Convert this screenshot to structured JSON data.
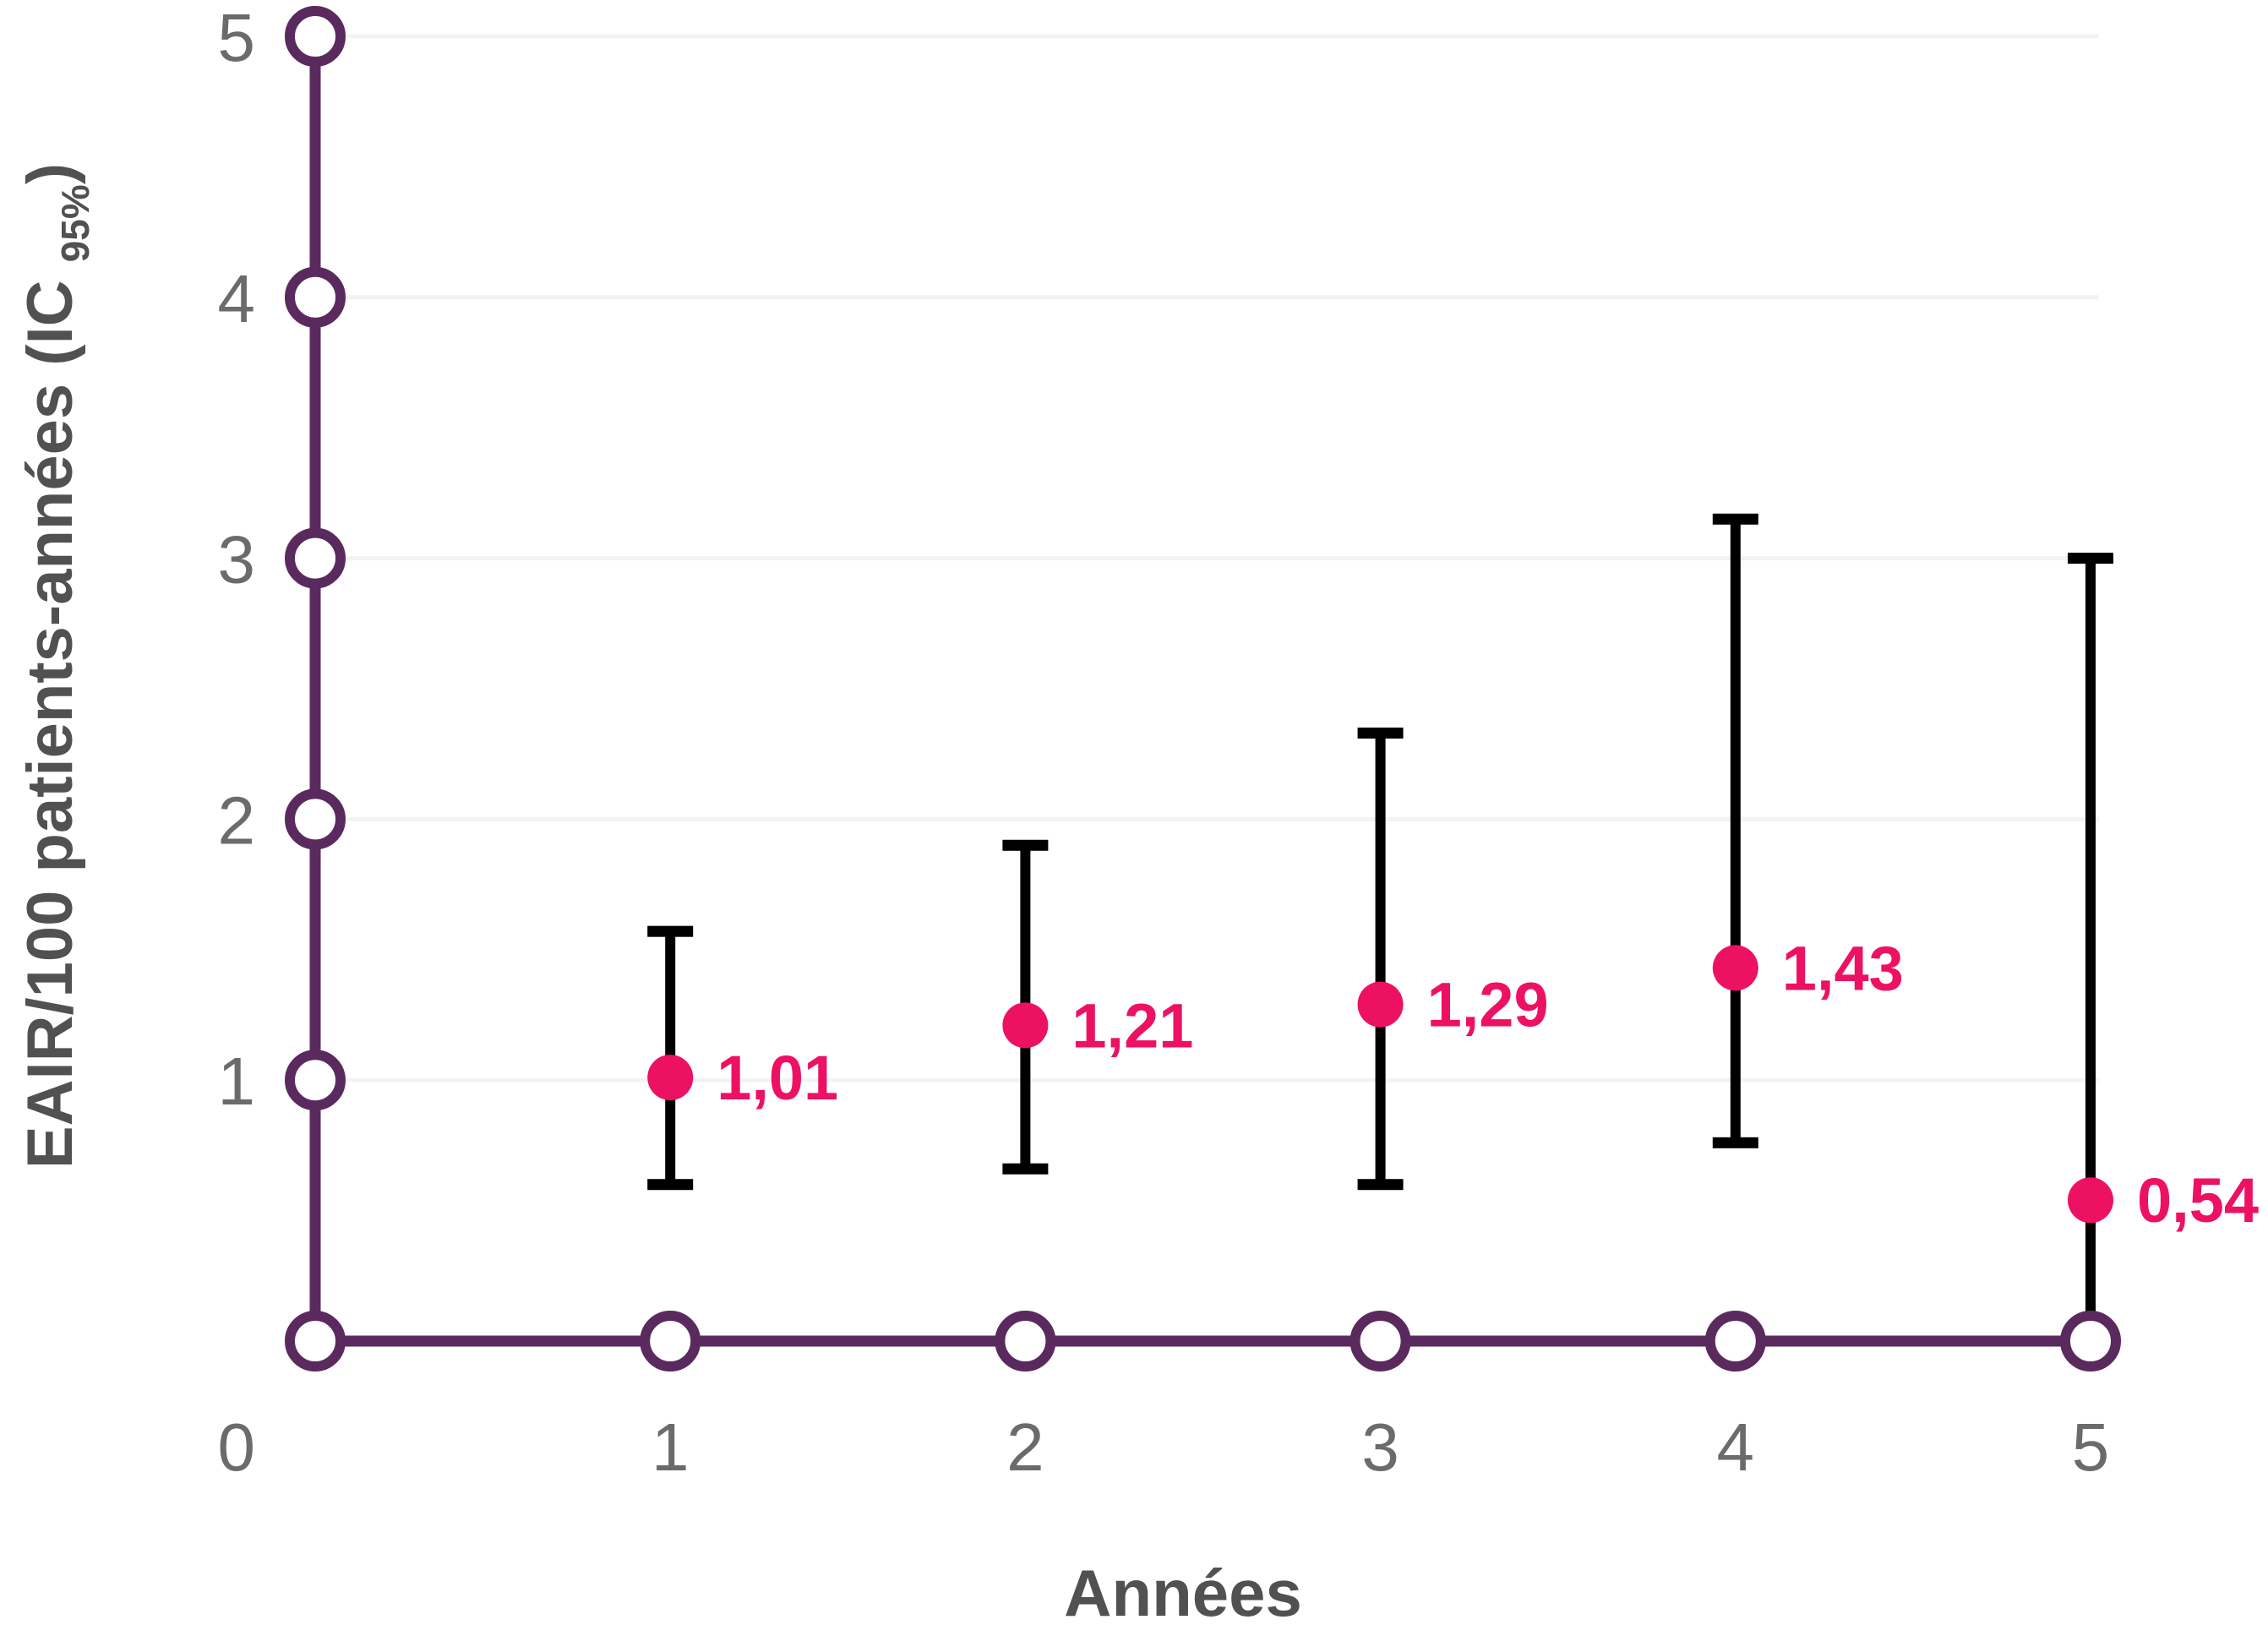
{
  "chart_data": {
    "type": "scatter",
    "title": "",
    "xlabel": "Années",
    "ylabel": {
      "prefix": "EAIR/100 patients-années (IC",
      "sub": "95%",
      "suffix": ")"
    },
    "x": [
      1,
      2,
      3,
      4,
      5
    ],
    "values": [
      1.01,
      1.21,
      1.29,
      1.43,
      0.54
    ],
    "value_labels": [
      "1,01",
      "1,21",
      "1,29",
      "1,43",
      "0,54"
    ],
    "ci_high": [
      1.57,
      1.9,
      2.33,
      3.15,
      3.0
    ],
    "ci_low": [
      0.6,
      0.66,
      0.6,
      0.76,
      0.08
    ],
    "ci_low_cap": [
      true,
      true,
      true,
      true,
      false
    ],
    "xticks": {
      "values": [
        0,
        1,
        2,
        3,
        4,
        5
      ],
      "labels": [
        "0",
        "1",
        "2",
        "3",
        "4",
        "5"
      ]
    },
    "yticks": {
      "values": [
        0,
        1,
        2,
        3,
        4,
        5
      ],
      "labels": [
        "0",
        "1",
        "2",
        "3",
        "4",
        "5"
      ]
    },
    "xlim": [
      0,
      5.4
    ],
    "ylim": [
      0,
      5
    ],
    "grid": "horizontal-light",
    "legend": "none",
    "colors": {
      "axis": "#5a2a5e",
      "point": "#ed1164",
      "errorbar": "#000000",
      "gridline": "#f3f3f3",
      "tick_text": "#6b6b6b",
      "title_text": "#515151"
    }
  }
}
